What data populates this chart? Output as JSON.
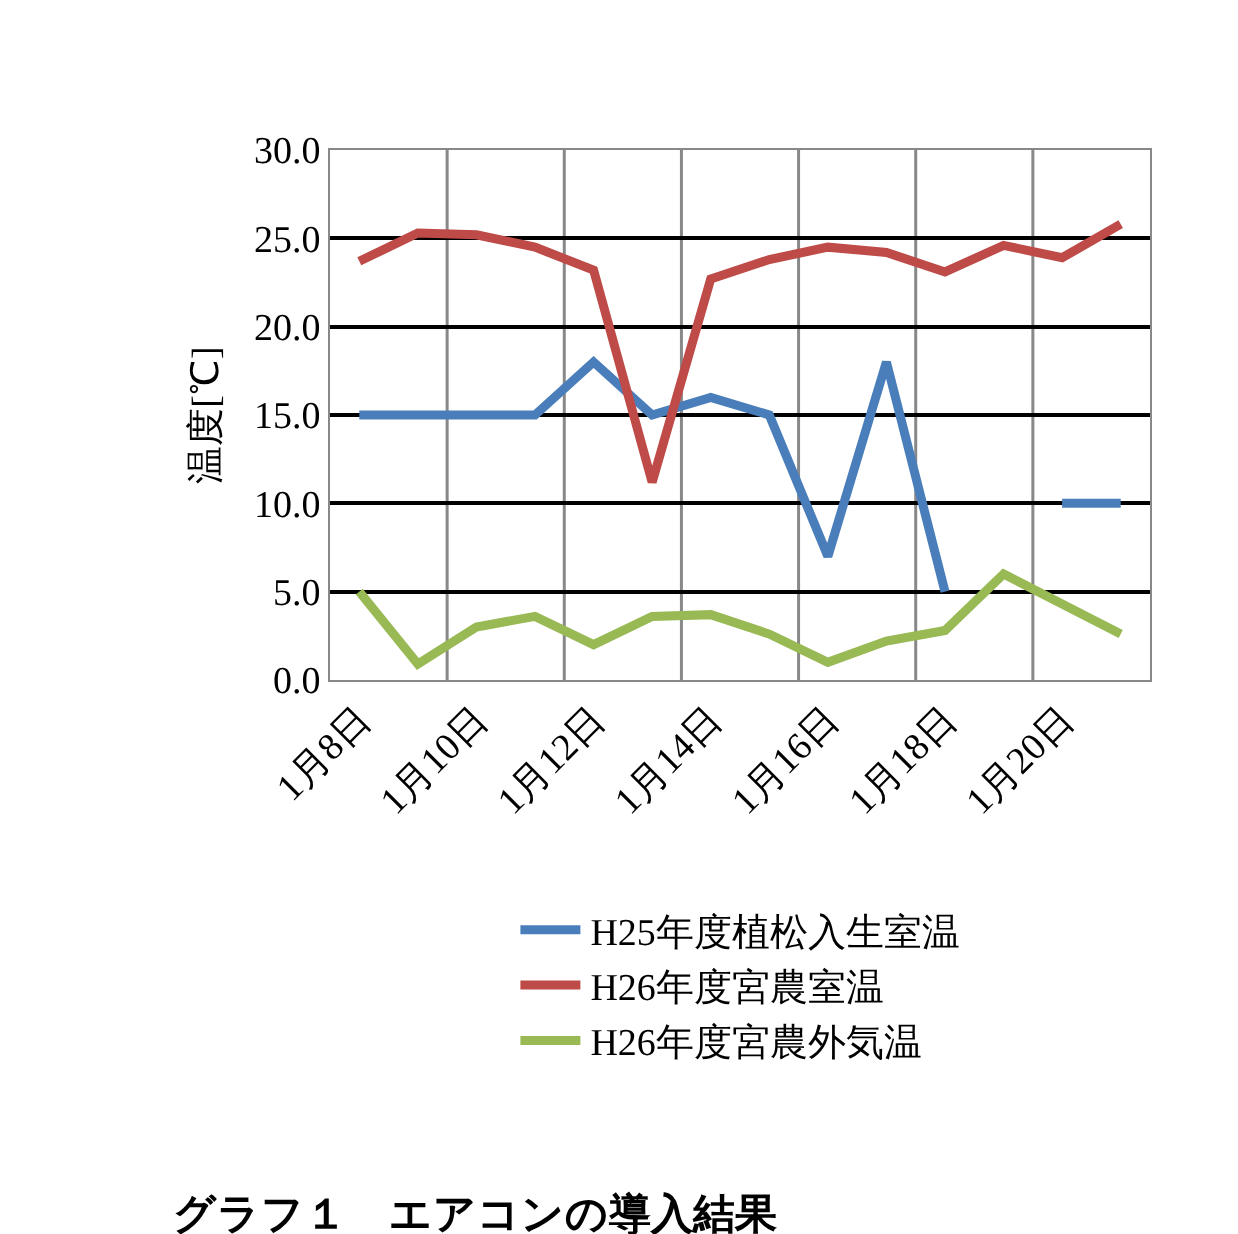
{
  "chart_data": {
    "type": "line",
    "title": "グラフ１　エアコンの導入結果",
    "ylabel": "温度[℃]",
    "categories": [
      "1月8日",
      null,
      "1月10日",
      null,
      "1月12日",
      null,
      "1月14日",
      null,
      "1月16日",
      null,
      "1月18日",
      null,
      "1月20日",
      null
    ],
    "series": [
      {
        "name": "H25年度植松入生室温",
        "color": "#4a7ebb",
        "values": [
          15,
          15,
          15,
          15,
          18,
          15,
          16,
          15,
          7,
          18,
          5,
          null,
          10,
          10
        ]
      },
      {
        "name": "H26年度宮農室温",
        "color": "#be4b48",
        "values": [
          23.7,
          25.3,
          25.2,
          24.5,
          23.2,
          11.2,
          22.7,
          23.8,
          24.5,
          24.2,
          23.1,
          24.6,
          23.9,
          25.8
        ]
      },
      {
        "name": "H26年度宮農外気温",
        "color": "#98b954",
        "values": [
          5.0,
          0.9,
          3.0,
          3.6,
          2.0,
          3.6,
          3.7,
          2.6,
          1.0,
          2.2,
          2.8,
          6.0,
          4.3,
          2.6
        ]
      }
    ],
    "ylim": [
      0,
      30
    ],
    "yticks": [
      {
        "value": 0,
        "label": "0.0"
      },
      {
        "value": 5,
        "label": "5.0"
      },
      {
        "value": 10,
        "label": "10.0"
      },
      {
        "value": 15,
        "label": "15.0"
      },
      {
        "value": 20,
        "label": "20.0"
      },
      {
        "value": 25,
        "label": "25.0"
      },
      {
        "value": 30,
        "label": "30.0"
      }
    ],
    "grid": true,
    "legend": "bottom",
    "marker": "none",
    "line_style": "solid"
  }
}
